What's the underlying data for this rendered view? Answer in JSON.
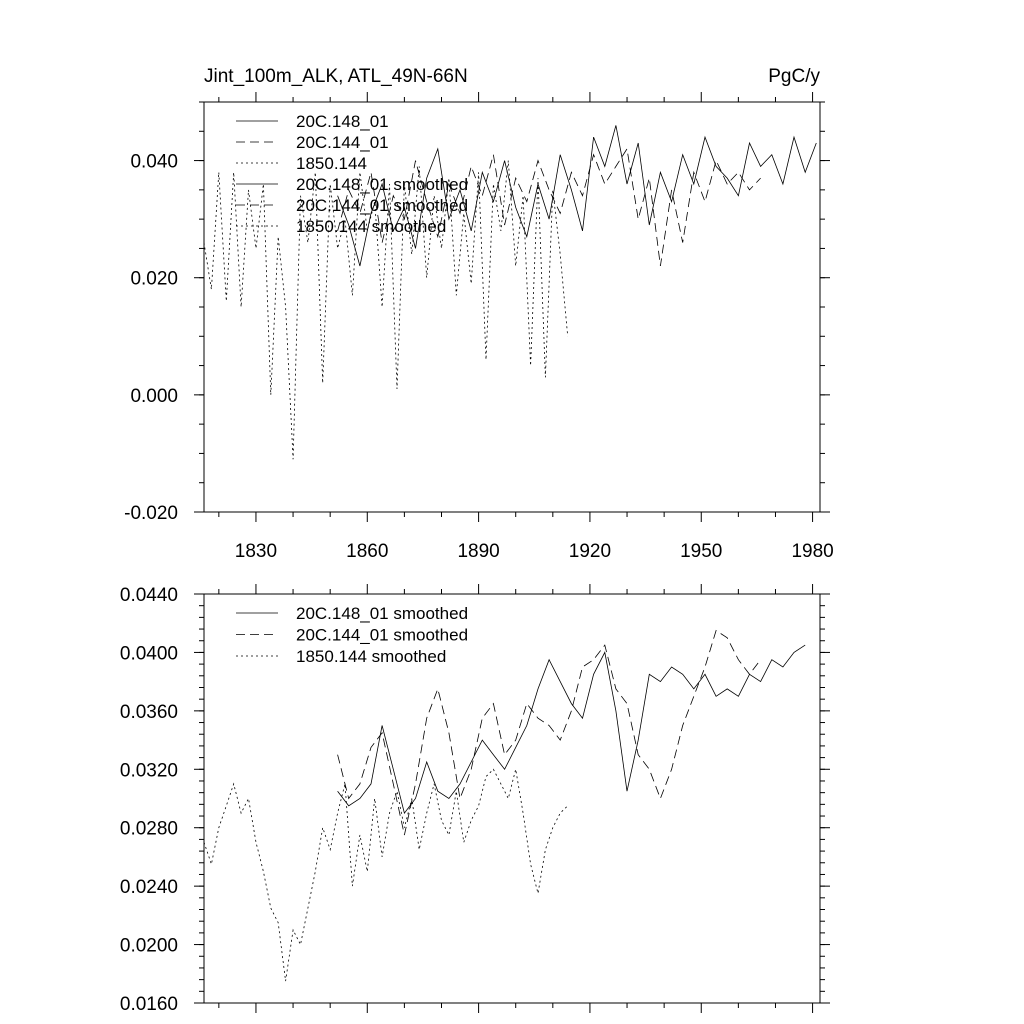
{
  "chart_data": [
    {
      "type": "line",
      "title_left": "Jint_100m_ALK, ATL_49N-66N",
      "title_right": "PgC/y",
      "xlabel": "",
      "ylabel": "",
      "xlim": [
        1816,
        1982
      ],
      "ylim": [
        -0.02,
        0.05
      ],
      "x_ticks": [
        1830,
        1860,
        1890,
        1920,
        1950,
        1980
      ],
      "x_tick_labels": [
        "1830",
        "1860",
        "1890",
        "1920",
        "1950",
        "1980"
      ],
      "y_ticks": [
        -0.02,
        0.0,
        0.02,
        0.04
      ],
      "y_tick_labels": [
        "-0.020",
        "0.000",
        "0.020",
        "0.040"
      ],
      "legend_placement": "top-left",
      "grid": false,
      "series": [
        {
          "name": "20C.148_01",
          "style": "solid",
          "x": [
            1852,
            1855,
            1858,
            1861,
            1864,
            1867,
            1870,
            1873,
            1876,
            1879,
            1882,
            1885,
            1888,
            1891,
            1894,
            1897,
            1900,
            1903,
            1906,
            1909,
            1912,
            1915,
            1918,
            1921,
            1924,
            1927,
            1930,
            1933,
            1936,
            1939,
            1942,
            1945,
            1948,
            1951,
            1954,
            1957,
            1960,
            1963,
            1966,
            1969,
            1972,
            1975,
            1978,
            1981
          ],
          "y": [
            0.034,
            0.029,
            0.022,
            0.031,
            0.036,
            0.028,
            0.032,
            0.025,
            0.037,
            0.042,
            0.03,
            0.035,
            0.028,
            0.038,
            0.033,
            0.04,
            0.032,
            0.027,
            0.036,
            0.03,
            0.041,
            0.035,
            0.028,
            0.044,
            0.039,
            0.046,
            0.036,
            0.043,
            0.029,
            0.038,
            0.033,
            0.041,
            0.036,
            0.044,
            0.039,
            0.037,
            0.034,
            0.043,
            0.039,
            0.041,
            0.036,
            0.044,
            0.038,
            0.043
          ]
        },
        {
          "name": "20C.144_01",
          "style": "dashed",
          "x": [
            1852,
            1855,
            1858,
            1861,
            1864,
            1867,
            1870,
            1873,
            1876,
            1879,
            1882,
            1885,
            1888,
            1891,
            1894,
            1897,
            1900,
            1903,
            1906,
            1909,
            1912,
            1915,
            1918,
            1921,
            1924,
            1927,
            1930,
            1933,
            1936,
            1939,
            1942,
            1945,
            1948,
            1951,
            1954,
            1957,
            1960,
            1963,
            1966
          ],
          "y": [
            0.028,
            0.035,
            0.031,
            0.038,
            0.026,
            0.034,
            0.03,
            0.04,
            0.033,
            0.027,
            0.036,
            0.031,
            0.039,
            0.034,
            0.041,
            0.029,
            0.037,
            0.033,
            0.04,
            0.035,
            0.031,
            0.038,
            0.034,
            0.041,
            0.036,
            0.039,
            0.042,
            0.03,
            0.037,
            0.022,
            0.035,
            0.026,
            0.038,
            0.033,
            0.04,
            0.036,
            0.038,
            0.035,
            0.037
          ]
        },
        {
          "name": "1850.144",
          "style": "dotted",
          "x": [
            1816,
            1818,
            1820,
            1822,
            1824,
            1826,
            1828,
            1830,
            1832,
            1834,
            1836,
            1838,
            1840,
            1842,
            1844,
            1846,
            1848,
            1850,
            1852,
            1854,
            1856,
            1858,
            1860,
            1862,
            1864,
            1866,
            1868,
            1870,
            1872,
            1874,
            1876,
            1878,
            1880,
            1882,
            1884,
            1886,
            1888,
            1890,
            1892,
            1894,
            1896,
            1898,
            1900,
            1902,
            1904,
            1906,
            1908,
            1910,
            1912,
            1914
          ],
          "y": [
            0.026,
            0.018,
            0.038,
            0.016,
            0.038,
            0.015,
            0.035,
            0.025,
            0.036,
            0.0,
            0.027,
            0.015,
            -0.011,
            0.034,
            0.026,
            0.038,
            0.002,
            0.036,
            0.025,
            0.03,
            0.017,
            0.038,
            0.028,
            0.033,
            0.015,
            0.036,
            0.001,
            0.036,
            0.024,
            0.039,
            0.02,
            0.034,
            0.025,
            0.037,
            0.017,
            0.031,
            0.019,
            0.038,
            0.006,
            0.036,
            0.028,
            0.04,
            0.022,
            0.034,
            0.005,
            0.037,
            0.003,
            0.035,
            0.024,
            0.01
          ]
        }
      ]
    },
    {
      "type": "line",
      "title": "",
      "xlabel": "",
      "ylabel": "",
      "xlim": [
        1816,
        1982
      ],
      "ylim": [
        0.016,
        0.044
      ],
      "y_ticks": [
        0.016,
        0.02,
        0.024,
        0.028,
        0.032,
        0.036,
        0.04,
        0.044
      ],
      "y_tick_labels": [
        "0.0160",
        "0.0200",
        "0.0240",
        "0.0280",
        "0.0320",
        "0.0360",
        "0.0400",
        "0.0440"
      ],
      "legend_placement": "top-left",
      "grid": false,
      "series": [
        {
          "name": "20C.148_01 smoothed",
          "style": "solid",
          "x": [
            1852,
            1855,
            1858,
            1861,
            1864,
            1867,
            1870,
            1873,
            1876,
            1879,
            1882,
            1885,
            1888,
            1891,
            1894,
            1897,
            1900,
            1903,
            1906,
            1909,
            1912,
            1915,
            1918,
            1921,
            1924,
            1927,
            1930,
            1933,
            1936,
            1939,
            1942,
            1945,
            1948,
            1951,
            1954,
            1957,
            1960,
            1963,
            1966,
            1969,
            1972,
            1975,
            1978
          ],
          "y": [
            0.0305,
            0.0295,
            0.03,
            0.031,
            0.035,
            0.032,
            0.029,
            0.03,
            0.0325,
            0.0305,
            0.03,
            0.031,
            0.0325,
            0.034,
            0.033,
            0.032,
            0.0335,
            0.035,
            0.0375,
            0.0395,
            0.038,
            0.0365,
            0.0355,
            0.0385,
            0.04,
            0.036,
            0.0305,
            0.034,
            0.0385,
            0.038,
            0.039,
            0.0385,
            0.0375,
            0.0385,
            0.037,
            0.0375,
            0.037,
            0.0385,
            0.038,
            0.0395,
            0.039,
            0.04,
            0.0405
          ]
        },
        {
          "name": "20C.144_01 smoothed",
          "style": "dashed",
          "x": [
            1852,
            1855,
            1858,
            1861,
            1864,
            1867,
            1870,
            1873,
            1876,
            1879,
            1882,
            1885,
            1888,
            1891,
            1894,
            1897,
            1900,
            1903,
            1906,
            1909,
            1912,
            1915,
            1918,
            1921,
            1924,
            1927,
            1930,
            1933,
            1936,
            1939,
            1942,
            1945,
            1948,
            1951,
            1954,
            1957,
            1960,
            1963,
            1966
          ],
          "y": [
            0.033,
            0.03,
            0.031,
            0.0335,
            0.0345,
            0.031,
            0.0275,
            0.031,
            0.0355,
            0.0375,
            0.0345,
            0.03,
            0.032,
            0.0355,
            0.0365,
            0.033,
            0.034,
            0.0365,
            0.0355,
            0.035,
            0.034,
            0.036,
            0.039,
            0.0395,
            0.0405,
            0.0375,
            0.0365,
            0.033,
            0.032,
            0.03,
            0.032,
            0.035,
            0.037,
            0.039,
            0.0415,
            0.041,
            0.0395,
            0.0385,
            0.0395
          ]
        },
        {
          "name": "1850.144 smoothed",
          "style": "dotted",
          "x": [
            1816,
            1818,
            1820,
            1822,
            1824,
            1826,
            1828,
            1830,
            1832,
            1834,
            1836,
            1838,
            1840,
            1842,
            1844,
            1846,
            1848,
            1850,
            1852,
            1854,
            1856,
            1858,
            1860,
            1862,
            1864,
            1866,
            1868,
            1870,
            1872,
            1874,
            1876,
            1878,
            1880,
            1882,
            1884,
            1886,
            1888,
            1890,
            1892,
            1894,
            1896,
            1898,
            1900,
            1902,
            1904,
            1906,
            1908,
            1910,
            1912,
            1914
          ],
          "y": [
            0.027,
            0.0255,
            0.028,
            0.0295,
            0.031,
            0.029,
            0.03,
            0.027,
            0.025,
            0.0225,
            0.0215,
            0.0175,
            0.021,
            0.02,
            0.0225,
            0.025,
            0.028,
            0.0265,
            0.029,
            0.031,
            0.024,
            0.0275,
            0.025,
            0.03,
            0.026,
            0.029,
            0.0305,
            0.028,
            0.03,
            0.0265,
            0.029,
            0.031,
            0.0285,
            0.0275,
            0.0305,
            0.027,
            0.0285,
            0.0295,
            0.0315,
            0.032,
            0.031,
            0.03,
            0.032,
            0.029,
            0.0255,
            0.0235,
            0.0265,
            0.028,
            0.029,
            0.0295
          ]
        }
      ]
    }
  ]
}
